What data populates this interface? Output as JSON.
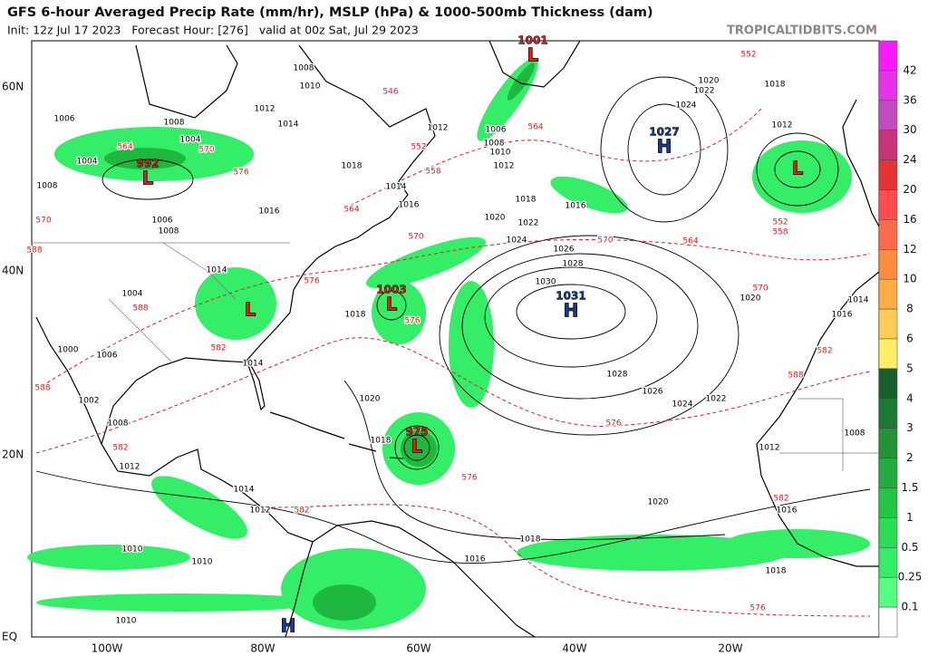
{
  "header": {
    "title": "GFS 6-hour Averaged Precip Rate (mm/hr), MSLP (hPa) & 1000-500mb Thickness (dam)",
    "subtitle": "Init: 12z Jul 17 2023   Forecast Hour: [276]   valid at 00z Sat, Jul 29 2023",
    "site": "TROPICALTIDBITS.COM"
  },
  "map": {
    "lat_labels": [
      "60N",
      "40N",
      "20N",
      "EQ"
    ],
    "lon_labels": [
      "100W",
      "80W",
      "60W",
      "40W",
      "20W"
    ],
    "pressure_centers": [
      {
        "symbol": "L",
        "value": "1001",
        "color": "#e02020"
      },
      {
        "symbol": "L",
        "value": "992",
        "color": "#e02020"
      },
      {
        "symbol": "L",
        "value": "1003",
        "color": "#e02020"
      },
      {
        "symbol": "L",
        "value": "975",
        "color": "#e02020"
      },
      {
        "symbol": "H",
        "value": "1027",
        "color": "#1a3a9a"
      },
      {
        "symbol": "H",
        "value": "1031",
        "color": "#1a3a9a"
      },
      {
        "symbol": "L",
        "color": "#e02020"
      },
      {
        "symbol": "L",
        "color": "#e02020"
      },
      {
        "symbol": "H",
        "color": "#1a3a9a"
      }
    ],
    "isobar_labels": [
      "1008",
      "1010",
      "1012",
      "1014",
      "1006",
      "1008",
      "1004",
      "1004",
      "1008",
      "1012",
      "1006",
      "1008",
      "1010",
      "1012",
      "1018",
      "1014",
      "1016",
      "1016",
      "1006",
      "1008",
      "1018",
      "1020",
      "1022",
      "1024",
      "1026",
      "1028",
      "1030",
      "1016",
      "1020",
      "1022",
      "1024",
      "1018",
      "1012",
      "1014",
      "1004",
      "1018",
      "1000",
      "1006",
      "1002",
      "1008",
      "1014",
      "1020",
      "1018",
      "1028",
      "1026",
      "1024",
      "1022",
      "1020",
      "1016",
      "1014",
      "1012",
      "1008",
      "1020",
      "1016",
      "1018",
      "1016",
      "1014",
      "1012",
      "1010",
      "1010",
      "1010",
      "1018",
      "1012"
    ],
    "thickness_labels": [
      "552",
      "546",
      "552",
      "564",
      "558",
      "564",
      "570",
      "570",
      "564",
      "570",
      "576",
      "588",
      "582",
      "576",
      "588",
      "582",
      "576",
      "576",
      "582",
      "582",
      "576",
      "552",
      "558",
      "564",
      "570",
      "576",
      "588",
      "582",
      "588",
      "570"
    ]
  },
  "colorbar": {
    "segments": [
      {
        "color": "#ff19ff",
        "label": "42"
      },
      {
        "color": "#e633e6",
        "label": "36"
      },
      {
        "color": "#c04cc0",
        "label": "30"
      },
      {
        "color": "#c8337a",
        "label": "24"
      },
      {
        "color": "#e63333",
        "label": "20"
      },
      {
        "color": "#ff4d4d",
        "label": "16"
      },
      {
        "color": "#ff6a4d",
        "label": "12"
      },
      {
        "color": "#ff8c40",
        "label": "10"
      },
      {
        "color": "#ffad45",
        "label": "8"
      },
      {
        "color": "#ffcc55",
        "label": "6"
      },
      {
        "color": "#ffee66",
        "label": "5"
      },
      {
        "color": "#16602a",
        "label": "4"
      },
      {
        "color": "#1d7a30",
        "label": "3"
      },
      {
        "color": "#229436",
        "label": "2"
      },
      {
        "color": "#22ad3c",
        "label": "1.5"
      },
      {
        "color": "#22c644",
        "label": "1"
      },
      {
        "color": "#2bdc55",
        "label": "0.5"
      },
      {
        "color": "#33ee66",
        "label": "0.25"
      },
      {
        "color": "#55ff80",
        "label": "0.1"
      },
      {
        "color": "#ffffff"
      }
    ]
  }
}
